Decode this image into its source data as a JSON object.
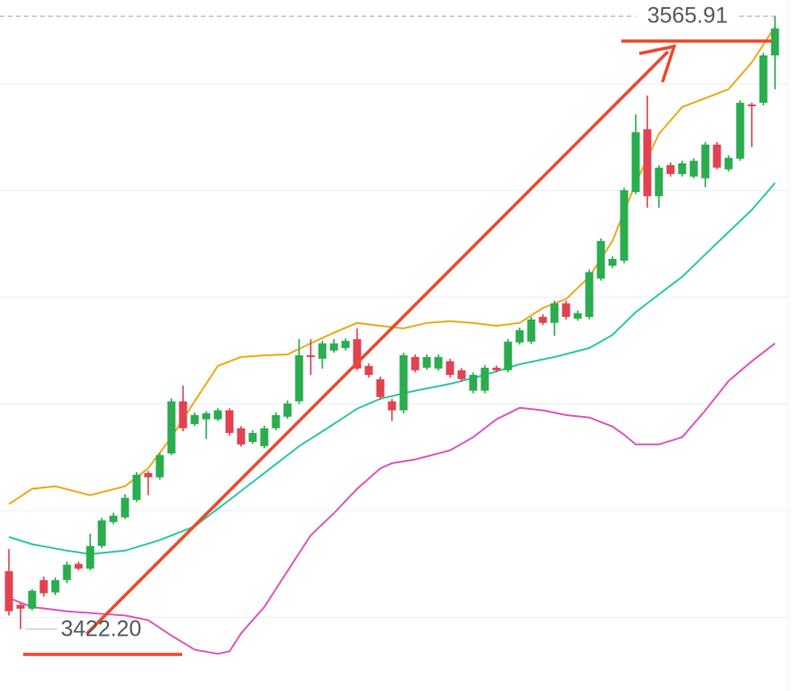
{
  "chart_data": {
    "type": "candlestick",
    "ylim": [
      3407.7,
      3569.7
    ],
    "grid_lines": [
      3425,
      3450,
      3475,
      3500,
      3525,
      3550
    ],
    "up_color": "#2bac4f",
    "down_color": "#e2424f",
    "candles": {
      "open": [
        3435.8,
        3427.9,
        3427.0,
        3433.7,
        3430.8,
        3433.7,
        3437.5,
        3436.4,
        3441.7,
        3447.3,
        3448.4,
        3452.5,
        3458.8,
        3457.8,
        3463.4,
        3475.6,
        3470.3,
        3471.4,
        3471.4,
        3473.5,
        3469.3,
        3466.1,
        3465.1,
        3469.3,
        3472.0,
        3475.6,
        3486.4,
        3485.6,
        3487.5,
        3488.1,
        3490.2,
        3483.9,
        3480.8,
        3475.6,
        3473.5,
        3486.0,
        3483.5,
        3483.3,
        3485.0,
        3482.9,
        3478.1,
        3478.1,
        3483.5,
        3482.9,
        3489.4,
        3489.6,
        3495.4,
        3494.0,
        3498.6,
        3495.0,
        3495.4,
        3504.4,
        3507.4,
        3508.6,
        3524.7,
        3539.4,
        3523.7,
        3531.0,
        3528.9,
        3528.3,
        3527.9,
        3535.8,
        3530.0,
        3532.5,
        3545.2,
        3545.6,
        3556.7
      ],
      "high": [
        3441.0,
        3428.3,
        3431.6,
        3434.5,
        3434.3,
        3438.0,
        3438.0,
        3444.6,
        3448.3,
        3449.5,
        3453.8,
        3459.0,
        3459.3,
        3463.5,
        3476.3,
        3479.3,
        3473.0,
        3473.3,
        3474.0,
        3474.0,
        3469.8,
        3468.8,
        3469.9,
        3473.0,
        3475.8,
        3490.2,
        3490.2,
        3489.8,
        3490.2,
        3490.4,
        3492.7,
        3484.5,
        3481.4,
        3476.2,
        3487.0,
        3486.6,
        3486.6,
        3486.6,
        3485.6,
        3483.4,
        3482.4,
        3484.1,
        3484.0,
        3490.2,
        3492.9,
        3495.4,
        3496.0,
        3499.2,
        3499.2,
        3496.9,
        3506.5,
        3513.8,
        3509.6,
        3525.7,
        3542.9,
        3547.3,
        3531.0,
        3531.6,
        3532.0,
        3532.6,
        3536.4,
        3536.4,
        3533.3,
        3546.2,
        3545.6,
        3557.3,
        3565.91
      ],
      "low": [
        3425.4,
        3422.2,
        3426.6,
        3429.8,
        3430.2,
        3433.0,
        3436.0,
        3436.0,
        3441.2,
        3446.8,
        3448.0,
        3452.0,
        3453.6,
        3457.2,
        3463.0,
        3468.6,
        3469.8,
        3466.8,
        3471.0,
        3467.6,
        3465.0,
        3465.6,
        3464.6,
        3468.8,
        3471.5,
        3475.0,
        3481.8,
        3483.3,
        3487.0,
        3487.5,
        3482.9,
        3481.2,
        3476.0,
        3471.0,
        3472.8,
        3482.4,
        3483.0,
        3482.8,
        3481.2,
        3480.2,
        3477.5,
        3477.5,
        3482.4,
        3482.4,
        3488.9,
        3489.1,
        3493.5,
        3491.0,
        3494.8,
        3494.5,
        3494.8,
        3503.9,
        3506.9,
        3508.0,
        3524.2,
        3521.0,
        3521.0,
        3528.3,
        3528.3,
        3527.9,
        3525.8,
        3530.0,
        3529.5,
        3532.0,
        3535.2,
        3545.0,
        3548.8
      ],
      "close": [
        3426.4,
        3427.0,
        3431.2,
        3430.6,
        3433.7,
        3437.3,
        3436.4,
        3441.7,
        3447.7,
        3448.8,
        3453.0,
        3458.4,
        3457.8,
        3463.0,
        3475.6,
        3469.3,
        3472.4,
        3472.8,
        3473.5,
        3468.2,
        3465.5,
        3468.2,
        3469.3,
        3472.4,
        3475.1,
        3486.4,
        3486.0,
        3489.2,
        3489.2,
        3489.8,
        3483.3,
        3481.8,
        3476.6,
        3473.5,
        3486.4,
        3482.9,
        3486.0,
        3486.0,
        3481.8,
        3480.8,
        3481.8,
        3483.5,
        3482.9,
        3489.6,
        3492.3,
        3494.8,
        3494.0,
        3498.6,
        3495.4,
        3496.3,
        3505.9,
        3513.2,
        3509.0,
        3525.1,
        3538.7,
        3523.7,
        3530.4,
        3528.9,
        3531.4,
        3532.0,
        3535.8,
        3530.4,
        3532.7,
        3545.6,
        3544.8,
        3556.7,
        3563.0
      ]
    },
    "lines": [
      {
        "color": "#f0a81c",
        "x": [
          0,
          2,
          4,
          7,
          10,
          12,
          14,
          16,
          18,
          20,
          22,
          24,
          26,
          28,
          30,
          32,
          34,
          36,
          38,
          40,
          42,
          44,
          46,
          48,
          50,
          52,
          54,
          56,
          58,
          60,
          62,
          64,
          66
        ],
        "values": [
          3451.5,
          3455.1,
          3455.7,
          3453.6,
          3455.7,
          3459.9,
          3467.2,
          3475.6,
          3483.9,
          3486.0,
          3486.4,
          3486.6,
          3489.2,
          3491.7,
          3494.0,
          3493.3,
          3492.7,
          3494.0,
          3494.4,
          3494.0,
          3493.3,
          3494.0,
          3497.5,
          3499.6,
          3504.8,
          3513.2,
          3526.8,
          3538.3,
          3544.6,
          3546.7,
          3548.8,
          3555.1,
          3563.4
        ]
      },
      {
        "color": "#2ec9a0",
        "x": [
          0,
          2,
          5,
          7,
          10,
          13,
          16,
          19,
          22,
          25,
          28,
          30,
          32,
          35,
          38,
          41,
          44,
          47,
          50,
          52,
          54,
          56,
          58,
          60,
          62,
          64,
          66
        ],
        "values": [
          3443.8,
          3442.1,
          3440.6,
          3439.8,
          3440.6,
          3443.1,
          3446.3,
          3452.5,
          3458.8,
          3465.1,
          3470.3,
          3473.9,
          3476.2,
          3478.1,
          3479.7,
          3481.8,
          3484.3,
          3486.0,
          3488.1,
          3491.2,
          3496.5,
          3500.7,
          3504.8,
          3510.1,
          3515.3,
          3520.5,
          3526.8
        ]
      },
      {
        "color": "#e056bd",
        "x": [
          0,
          2,
          5,
          7,
          10,
          12,
          14,
          16,
          18,
          19,
          20,
          22,
          24,
          26,
          28,
          30,
          32,
          33,
          35,
          38,
          40,
          42,
          44,
          46,
          48,
          50,
          52,
          53,
          54,
          56,
          58,
          60,
          62,
          64,
          66
        ],
        "values": [
          3429.5,
          3427.4,
          3426.4,
          3426.0,
          3425.4,
          3424.3,
          3420.7,
          3417.4,
          3416.4,
          3417.0,
          3421.2,
          3427.4,
          3435.8,
          3444.2,
          3449.4,
          3455.1,
          3459.9,
          3461.1,
          3462.0,
          3464.1,
          3467.2,
          3471.4,
          3474.1,
          3473.5,
          3472.4,
          3471.8,
          3469.7,
          3467.8,
          3465.5,
          3465.5,
          3467.2,
          3473.5,
          3480.4,
          3485.0,
          3489.2
        ]
      }
    ],
    "price_labels": [
      3565.91,
      {
        "value": 3422.2,
        "label": "3422.20"
      }
    ]
  }
}
